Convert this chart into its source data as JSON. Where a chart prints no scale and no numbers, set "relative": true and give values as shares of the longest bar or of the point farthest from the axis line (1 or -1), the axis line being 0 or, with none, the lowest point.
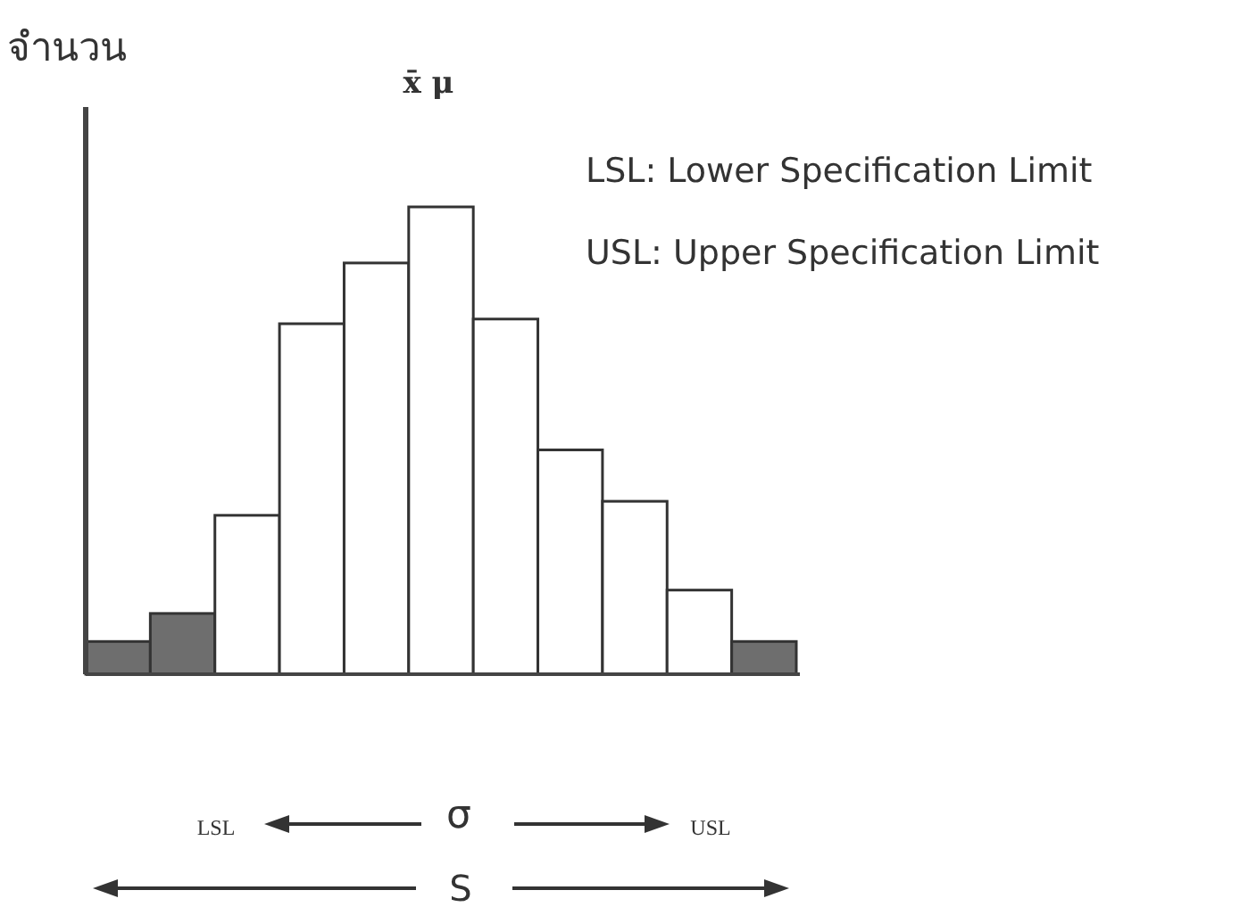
{
  "chart_data": {
    "type": "bar",
    "ylabel": "จำนวน",
    "relative": true,
    "categories": [
      null,
      null,
      null,
      null,
      null,
      null,
      null,
      null,
      null,
      null,
      null
    ],
    "values": [
      0.07,
      0.13,
      0.34,
      0.75,
      0.88,
      1,
      0.76,
      0.48,
      0.37,
      0.18,
      0.07
    ],
    "colors": [
      "#6e6e6e",
      "#6e6e6e",
      "#ffffff",
      "#ffffff",
      "#ffffff",
      "#ffffff",
      "#ffffff",
      "#ffffff",
      "#ffffff",
      "#ffffff",
      "#6e6e6e"
    ],
    "annotations": [
      "x̄ μ",
      "LSL: Lower Specification Limit",
      "USL: Upper Specification Limit",
      "LSL",
      "σ",
      "USL",
      "S"
    ]
  }
}
